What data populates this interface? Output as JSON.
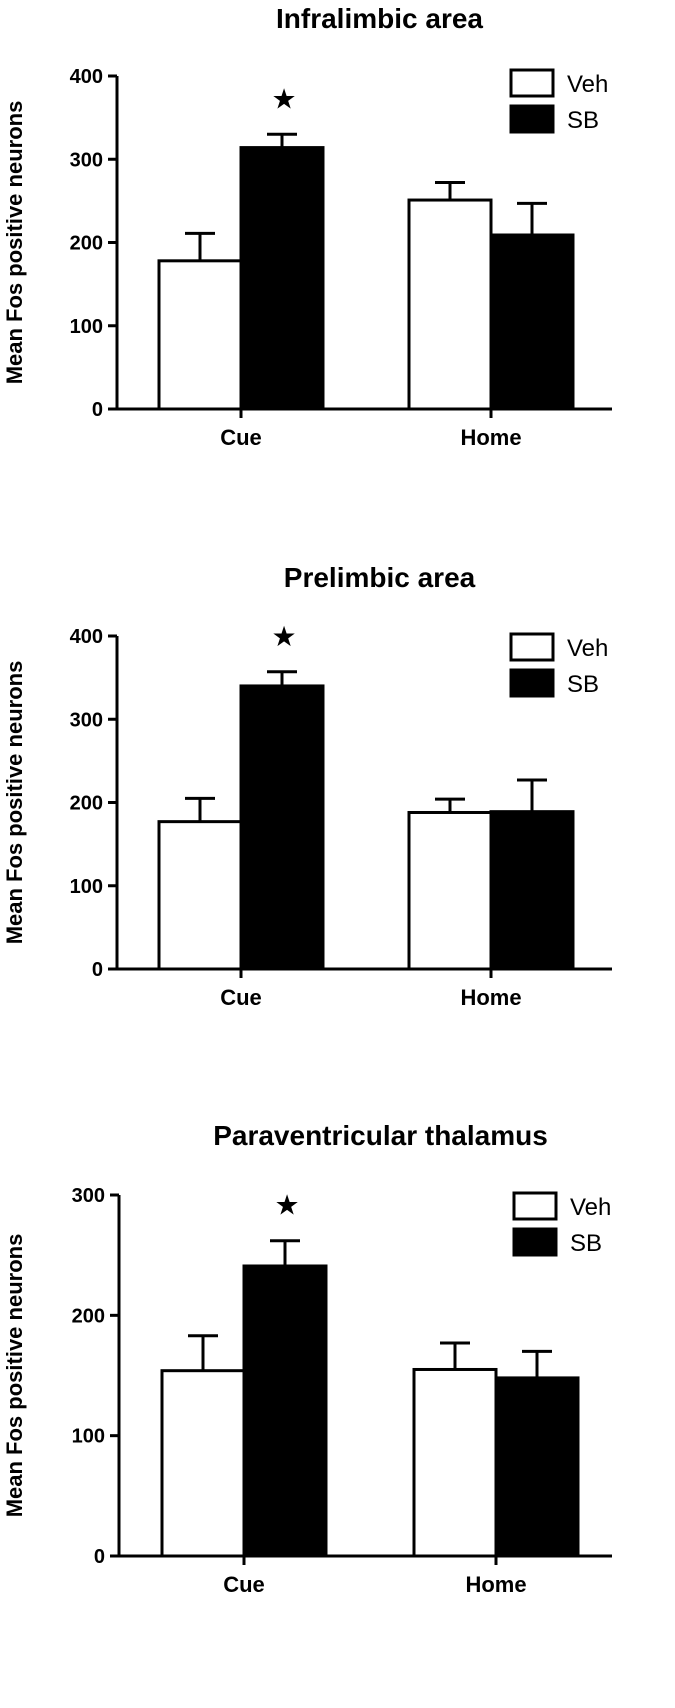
{
  "chart_data": [
    {
      "type": "bar",
      "title": "Infralimbic area",
      "xlabel": "",
      "ylabel": "Mean Fos positive neurons",
      "ylim": [
        0,
        400
      ],
      "yticks": [
        0,
        100,
        200,
        300,
        400
      ],
      "categories": [
        "Cue",
        "Home"
      ],
      "series": [
        {
          "name": "Veh",
          "fill": "#ffffff",
          "values": [
            178,
            251
          ],
          "errors": [
            33,
            21
          ]
        },
        {
          "name": "SB",
          "fill": "#000000",
          "values": [
            314,
            209
          ],
          "errors": [
            16,
            38
          ]
        }
      ],
      "significance": [
        {
          "category": "Cue",
          "symbol": "★"
        }
      ],
      "legend_position": "top-right",
      "grid": false
    },
    {
      "type": "bar",
      "title": "Prelimbic area",
      "xlabel": "",
      "ylabel": "Mean Fos positive neurons",
      "ylim": [
        0,
        400
      ],
      "yticks": [
        0,
        100,
        200,
        300,
        400
      ],
      "categories": [
        "Cue",
        "Home"
      ],
      "series": [
        {
          "name": "Veh",
          "fill": "#ffffff",
          "values": [
            177,
            188
          ],
          "errors": [
            28,
            16
          ]
        },
        {
          "name": "SB",
          "fill": "#000000",
          "values": [
            340,
            189
          ],
          "errors": [
            17,
            38
          ]
        }
      ],
      "significance": [
        {
          "category": "Cue",
          "symbol": "★"
        }
      ],
      "legend_position": "top-right",
      "grid": false
    },
    {
      "type": "bar",
      "title": "Paraventricular thalamus",
      "xlabel": "",
      "ylabel": "Mean Fos positive neurons",
      "ylim": [
        0,
        300
      ],
      "yticks": [
        0,
        100,
        200,
        300
      ],
      "categories": [
        "Cue",
        "Home"
      ],
      "series": [
        {
          "name": "Veh",
          "fill": "#ffffff",
          "values": [
            154,
            155
          ],
          "errors": [
            29,
            22
          ]
        },
        {
          "name": "SB",
          "fill": "#000000",
          "values": [
            241,
            148
          ],
          "errors": [
            21,
            22
          ]
        }
      ],
      "significance": [
        {
          "category": "Cue",
          "symbol": "★"
        }
      ],
      "legend_position": "top-right",
      "grid": false
    }
  ]
}
